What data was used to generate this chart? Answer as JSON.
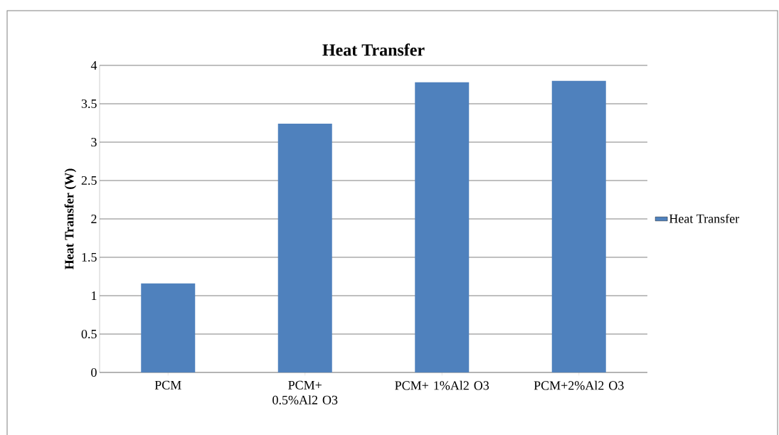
{
  "chart_data": {
    "type": "bar",
    "title": "Heat Transfer",
    "ylabel": "Heat Transfer (W)",
    "categories": [
      "PCM",
      "PCM+ 0.5%Al2 O3",
      "PCM+ 1%Al2 O3",
      "PCM+2%Al2 O3"
    ],
    "series": [
      {
        "name": "Heat Transfer",
        "color": "#4f81bd",
        "values": [
          1.16,
          3.24,
          3.78,
          3.8
        ]
      }
    ],
    "ylim": [
      0,
      4
    ],
    "yticks": [
      0,
      0.5,
      1,
      1.5,
      2,
      2.5,
      3,
      3.5,
      4
    ],
    "grid": "y",
    "legend": "right"
  }
}
